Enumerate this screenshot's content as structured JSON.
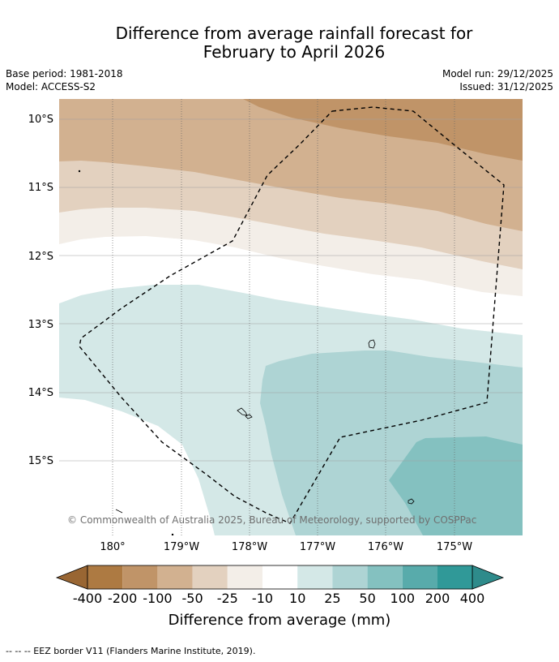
{
  "title_line1": "Difference from average rainfall forecast for",
  "title_line2": "February to April 2026",
  "base_period": "Base period: 1981-2018",
  "model": "Model: ACCESS-S2",
  "model_run": "Model run: 29/12/2025",
  "issued": "Issued: 31/12/2025",
  "lat_labels": [
    "10°S",
    "11°S",
    "12°S",
    "13°S",
    "14°S",
    "15°S"
  ],
  "lon_labels": [
    "180°",
    "179°W",
    "178°W",
    "177°W",
    "176°W",
    "175°W"
  ],
  "copyright": "© Commonwealth of Australia 2025, Bureau of Meteorology, supported by COSPPac",
  "colorbar": {
    "title": "Difference from average (mm)",
    "labels": [
      "-400",
      "-200",
      "-100",
      "-50",
      "-25",
      "-10",
      "10",
      "25",
      "50",
      "100",
      "200",
      "400"
    ],
    "colors": [
      "#ad7a42",
      "#c09468",
      "#d2b190",
      "#e3d1bf",
      "#f3eee8",
      "#ffffff",
      "#d4e8e7",
      "#aed4d4",
      "#84c1c0",
      "#58abab",
      "#309998"
    ],
    "extend_low_color": "#996633",
    "extend_high_color": "#2e8b8b"
  },
  "footnote": "--  --  -- EEZ border V11 (Flanders Marine Institute, 2019)."
}
